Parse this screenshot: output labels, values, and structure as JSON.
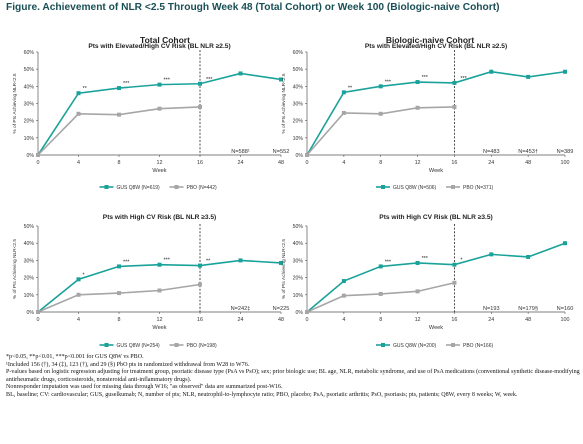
{
  "figure_title": "Figure. Achievement of NLR <2.5 Through Week 48 (Total Cohort) or Week 100 (Biologic-naive Cohort)",
  "colors": {
    "gus": "#1aa29a",
    "pbo": "#a6a6a6",
    "title": "#1a4f56"
  },
  "column_headers": [
    "Total Cohort",
    "Biologic-naive Cohort"
  ],
  "chart_data": [
    {
      "type": "line",
      "title": "Pts with Elevated/High CV Risk (BL NLR ≥2.5)",
      "ylabel": "% of Pts Achieving NLR<2.5",
      "xlabel": "Week",
      "x": [
        0,
        4,
        8,
        12,
        16,
        24,
        48
      ],
      "x_tick_labels": [
        "0",
        "4",
        "8",
        "12",
        "16",
        "24",
        "48"
      ],
      "ylim": [
        0,
        60
      ],
      "y_ticks": [
        "0%",
        "10%",
        "20%",
        "30%",
        "40%",
        "50%",
        "60%"
      ],
      "reference_line_week": 16,
      "series": [
        {
          "name": "GUS Q8W (N=619)",
          "key": "gus",
          "values": [
            0,
            36,
            39,
            41,
            41.5,
            47.5,
            44
          ]
        },
        {
          "name": "PBO (N=442)",
          "key": "pbo",
          "values": [
            0,
            24,
            23.5,
            27,
            28,
            null,
            null
          ]
        }
      ],
      "significance": [
        {
          "x": 4,
          "label": "**"
        },
        {
          "x": 8,
          "label": "***"
        },
        {
          "x": 12,
          "label": "***"
        },
        {
          "x": 16,
          "label": "***"
        }
      ],
      "n_labels": [
        {
          "x": 24,
          "label": "N=588¹"
        },
        {
          "x": 48,
          "label": "N=552"
        }
      ]
    },
    {
      "type": "line",
      "title": "Pts with Elevated/High CV Risk (BL NLR ≥2.5)",
      "ylabel": "% of Pts Achieving NLR<2.5",
      "xlabel": "Week",
      "x": [
        0,
        4,
        8,
        12,
        16,
        24,
        48,
        100
      ],
      "x_tick_labels": [
        "0",
        "4",
        "8",
        "12",
        "16",
        "24",
        "48",
        "100"
      ],
      "ylim": [
        0,
        60
      ],
      "y_ticks": [
        "0%",
        "10%",
        "20%",
        "30%",
        "40%",
        "50%",
        "60%"
      ],
      "reference_line_week": 16,
      "series": [
        {
          "name": "GUS Q8W (N=506)",
          "key": "gus",
          "values": [
            0,
            36.5,
            40,
            42.5,
            42,
            48.5,
            45.5,
            48.5
          ]
        },
        {
          "name": "PBO (N=371)",
          "key": "pbo",
          "values": [
            0,
            24.5,
            24,
            27.5,
            28,
            null,
            null,
            null
          ]
        }
      ],
      "significance": [
        {
          "x": 4,
          "label": "**"
        },
        {
          "x": 8,
          "label": "***"
        },
        {
          "x": 12,
          "label": "***"
        },
        {
          "x": 16,
          "label": "***"
        }
      ],
      "n_labels": [
        {
          "x": 24,
          "label": "N=483"
        },
        {
          "x": 48,
          "label": "N=453†"
        },
        {
          "x": 100,
          "label": "N=389"
        }
      ]
    },
    {
      "type": "line",
      "title": "Pts with High CV Risk (BL NLR ≥3.5)",
      "ylabel": "% of Pts Achieving NLR<2.5",
      "xlabel": "Week",
      "x": [
        0,
        4,
        8,
        12,
        16,
        24,
        48
      ],
      "x_tick_labels": [
        "0",
        "4",
        "8",
        "12",
        "16",
        "24",
        "48"
      ],
      "ylim": [
        0,
        50
      ],
      "y_ticks": [
        "0%",
        "10%",
        "20%",
        "30%",
        "40%",
        "50%"
      ],
      "reference_line_week": 16,
      "series": [
        {
          "name": "GUS Q8W (N=254)",
          "key": "gus",
          "values": [
            0,
            19,
            26.5,
            27.5,
            27,
            30,
            28.5
          ]
        },
        {
          "name": "PBO (N=198)",
          "key": "pbo",
          "values": [
            0,
            10,
            11,
            12.5,
            16,
            null,
            null
          ]
        }
      ],
      "significance": [
        {
          "x": 4,
          "label": "*"
        },
        {
          "x": 8,
          "label": "***"
        },
        {
          "x": 12,
          "label": "***"
        },
        {
          "x": 16,
          "label": "**"
        }
      ],
      "n_labels": [
        {
          "x": 24,
          "label": "N=242‡"
        },
        {
          "x": 48,
          "label": "N=225"
        }
      ]
    },
    {
      "type": "line",
      "title": "Pts with High CV Risk (BL NLR ≥3.5)",
      "ylabel": "% of Pts Achieving NLR<2.5",
      "xlabel": "Week",
      "x": [
        0,
        4,
        8,
        12,
        16,
        24,
        48,
        100
      ],
      "x_tick_labels": [
        "0",
        "4",
        "8",
        "12",
        "16",
        "24",
        "48",
        "100"
      ],
      "ylim": [
        0,
        50
      ],
      "y_ticks": [
        "0%",
        "10%",
        "20%",
        "30%",
        "40%",
        "50%"
      ],
      "reference_line_week": 16,
      "series": [
        {
          "name": "GUS Q8W (N=200)",
          "key": "gus",
          "values": [
            0,
            18,
            26.5,
            28.5,
            27.5,
            33.5,
            32,
            40
          ]
        },
        {
          "name": "PBO (N=166)",
          "key": "pbo",
          "values": [
            0,
            9.5,
            10.5,
            12,
            17,
            null,
            null,
            null
          ]
        }
      ],
      "significance": [
        {
          "x": 8,
          "label": "***"
        },
        {
          "x": 12,
          "label": "***"
        },
        {
          "x": 16,
          "label": "*"
        }
      ],
      "n_labels": [
        {
          "x": 24,
          "label": "N=193"
        },
        {
          "x": 48,
          "label": "N=179§"
        },
        {
          "x": 100,
          "label": "N=160"
        }
      ]
    }
  ],
  "footnotes": [
    "*p<0.05, **p<0.01, ***p<0.001 for GUS Q8W vs PBO.",
    "¹Included 156 (†), 34 (‡), 123 (†), and 29 (§) PbO pts in randomized withdrawal from W28 to W76.",
    "P-values based on logistic regression adjusting for treatment group, psoriatic disease type (PsA vs PsO); sex; prior biologic use; BL age, NLR, metabolic syndrome, and use of PsA medications (conventional synthetic disease-modifying antirheumatic drugs, corticosteroids, nonsteroidal anti-inflammatory drugs).",
    "Nonresponder imputation was used for missing data through W16; \"as observed\" data are summarized post-W16.",
    "BL, baseline; CV: cardiovascular; GUS, guselkumab; N, number of pts; NLR, neutrophil-to-lymphocyte ratio; PBO, placebo; PsA, psoriatic arthritis; PsO, psoriasis; pts, patients; Q8W, every 8 weeks; W, week."
  ]
}
